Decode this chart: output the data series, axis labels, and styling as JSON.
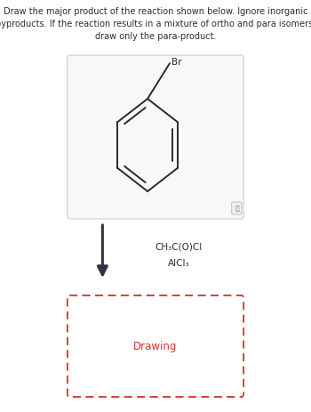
{
  "title_line1": "Draw the major product of the reaction shown below. Ignore inorganic",
  "title_line2": "byproducts. If the reaction results in a mixture of ortho and para isomers,",
  "title_line3": "draw only the para-product.",
  "reagent1": "CH₃C(O)Cl",
  "reagent2": "AlCl₃",
  "drawing_label": "Drawing",
  "bg_color": "#ffffff",
  "text_color": "#2d2d2d",
  "arrow_color": "#333344",
  "box_bg": "#f8f8f8",
  "box_border": "#cccccc",
  "dashed_box_color": "#d63030",
  "mol_color": "#2a2a2a"
}
